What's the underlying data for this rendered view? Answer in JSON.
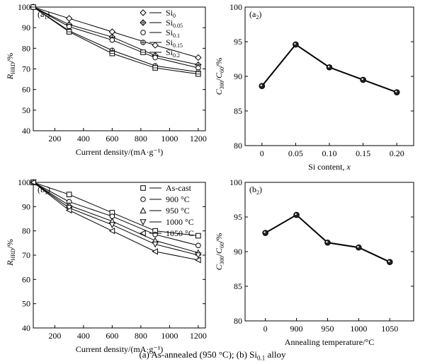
{
  "caption": {
    "prefix": "(a) As-annealed (950 °C); (b) Si",
    "sub": "0.1",
    "suffix": " alloy"
  },
  "chart_data": [
    {
      "id": "a1",
      "type": "line",
      "panel_label": {
        "base": "(a",
        "sub": "1",
        "close": ")"
      },
      "xlabel": "Current density/(mA·g⁻¹)",
      "ylabel": {
        "base": "R",
        "sub": "HRD",
        "suffix": "/%"
      },
      "xlim": [
        50,
        1250
      ],
      "ylim": [
        40,
        100
      ],
      "xticks": [
        200,
        400,
        600,
        800,
        1000,
        1200
      ],
      "yticks": [
        40,
        50,
        60,
        70,
        80,
        90,
        100
      ],
      "legend_position": "top-right",
      "x": [
        50,
        300,
        600,
        900,
        1200
      ],
      "series": [
        {
          "name": "Si",
          "sub": "0",
          "marker": "diamond",
          "values": [
            100,
            94.5,
            88,
            81.5,
            75.5
          ]
        },
        {
          "name": "Si",
          "sub": "0.05",
          "marker": "diamond-cross",
          "values": [
            100,
            91.5,
            85.5,
            76.5,
            72
          ]
        },
        {
          "name": "Si",
          "sub": "0.1",
          "marker": "circle",
          "values": [
            100,
            90.5,
            84,
            75.5,
            70.5
          ]
        },
        {
          "name": "Si",
          "sub": "0.15",
          "marker": "circle-plus",
          "values": [
            100,
            88.5,
            79,
            71.5,
            68.5
          ]
        },
        {
          "name": "Si",
          "sub": "0.2",
          "marker": "square-grid",
          "values": [
            100,
            88,
            77.5,
            70.5,
            67.5
          ]
        }
      ]
    },
    {
      "id": "a2",
      "type": "line",
      "panel_label": {
        "base": "(a",
        "sub": "2",
        "close": ")"
      },
      "xlabel": "Si content, ",
      "xlabel_italic": "x",
      "ylabel": {
        "parts": [
          "C",
          "300",
          "/C",
          "60",
          "/%"
        ]
      },
      "xlim": [
        -0.025,
        0.225
      ],
      "ylim": [
        80,
        100
      ],
      "categories": [
        "0",
        "0.05",
        "0.10",
        "0.15",
        "0.20"
      ],
      "yticks": [
        80,
        85,
        90,
        95,
        100
      ],
      "series": [
        {
          "marker": "filled-circle",
          "values": [
            88.6,
            94.6,
            91.3,
            89.5,
            87.7
          ]
        }
      ]
    },
    {
      "id": "b1",
      "type": "line",
      "panel_label": {
        "base": "(b",
        "sub": "1",
        "close": ")"
      },
      "xlabel": "Current density/(mA·g⁻¹)",
      "ylabel": {
        "base": "R",
        "sub": "HRD",
        "suffix": "/%"
      },
      "xlim": [
        50,
        1250
      ],
      "ylim": [
        40,
        100
      ],
      "xticks": [
        200,
        400,
        600,
        800,
        1000,
        1200
      ],
      "yticks": [
        40,
        50,
        60,
        70,
        80,
        90,
        100
      ],
      "legend_position": "top-right",
      "x": [
        50,
        300,
        600,
        900,
        1200
      ],
      "series": [
        {
          "name": "As-cast",
          "marker": "square",
          "values": [
            100,
            95,
            87.5,
            80,
            78
          ]
        },
        {
          "name": "900 °C",
          "marker": "circle",
          "values": [
            100,
            92,
            86,
            78.5,
            74
          ]
        },
        {
          "name": "950 °C",
          "marker": "triangle-up",
          "values": [
            100,
            90.5,
            84,
            76,
            71
          ]
        },
        {
          "name": "1000 °C",
          "marker": "triangle-down",
          "values": [
            100,
            89.5,
            82.5,
            74.5,
            70
          ]
        },
        {
          "name": "1050 °C",
          "marker": "triangle-left",
          "values": [
            100,
            88.5,
            80,
            71.5,
            68
          ]
        }
      ]
    },
    {
      "id": "b2",
      "type": "line",
      "panel_label": {
        "base": "(b",
        "sub": "2",
        "close": ")"
      },
      "xlabel": "Annealing temperature/°C",
      "ylabel": {
        "parts": [
          "C",
          "300",
          "/C",
          "60",
          "/%"
        ]
      },
      "ylim": [
        80,
        100
      ],
      "categories": [
        "0",
        "900",
        "950",
        "1000",
        "1050"
      ],
      "yticks": [
        80,
        85,
        90,
        95,
        100
      ],
      "series": [
        {
          "marker": "filled-circle",
          "values": [
            92.7,
            95.3,
            91.3,
            90.6,
            88.5
          ]
        }
      ]
    }
  ]
}
